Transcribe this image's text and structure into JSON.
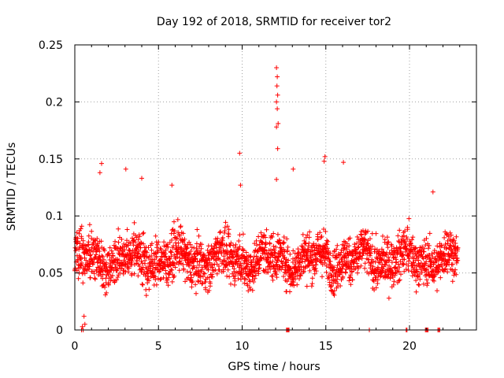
{
  "chart_data": {
    "type": "scatter",
    "title": "Day 192 of 2018, SRMTID for receiver tor2",
    "xlabel": "GPS time / hours",
    "ylabel": "SRMTID / TECUs",
    "xlim": [
      0,
      24
    ],
    "ylim": [
      0,
      0.25
    ],
    "x_ticks": [
      0,
      5,
      10,
      15,
      20
    ],
    "y_ticks": [
      0,
      0.05,
      0.1,
      0.15,
      0.2,
      0.25
    ],
    "x_tick_labels": [
      "0",
      "5",
      "10",
      "15",
      "20"
    ],
    "y_tick_labels": [
      "0",
      "0.05",
      "0.1",
      "0.15",
      "0.2",
      "0.25"
    ],
    "grid": true,
    "marker": "plus",
    "marker_color": "#ff0000",
    "x_range_of_points": [
      0,
      22.9
    ],
    "typical_y_range": [
      0.02,
      0.11
    ],
    "notable_points": [
      {
        "x": 12.05,
        "y": 0.23
      },
      {
        "x": 12.1,
        "y": 0.222
      },
      {
        "x": 12.08,
        "y": 0.214
      },
      {
        "x": 12.12,
        "y": 0.206
      },
      {
        "x": 12.05,
        "y": 0.2
      },
      {
        "x": 12.1,
        "y": 0.194
      },
      {
        "x": 12.15,
        "y": 0.181
      },
      {
        "x": 12.05,
        "y": 0.178
      },
      {
        "x": 12.12,
        "y": 0.159
      },
      {
        "x": 9.85,
        "y": 0.155
      },
      {
        "x": 14.95,
        "y": 0.152
      },
      {
        "x": 14.9,
        "y": 0.148
      },
      {
        "x": 16.05,
        "y": 0.147
      },
      {
        "x": 1.6,
        "y": 0.146
      },
      {
        "x": 3.05,
        "y": 0.141
      },
      {
        "x": 13.05,
        "y": 0.141
      },
      {
        "x": 1.5,
        "y": 0.138
      },
      {
        "x": 4.0,
        "y": 0.133
      },
      {
        "x": 12.05,
        "y": 0.132
      },
      {
        "x": 9.9,
        "y": 0.127
      },
      {
        "x": 5.8,
        "y": 0.127
      },
      {
        "x": 21.4,
        "y": 0.121
      },
      {
        "x": 0.45,
        "y": 0.003
      },
      {
        "x": 0.6,
        "y": 0.005
      },
      {
        "x": 0.55,
        "y": 0.012
      }
    ],
    "zero_points_x": [
      0.4,
      0.5,
      12.65,
      12.7,
      12.75,
      12.8,
      17.6,
      19.8,
      19.85,
      20.95,
      21.0,
      21.05,
      21.1,
      21.7,
      21.75,
      21.8
    ]
  }
}
